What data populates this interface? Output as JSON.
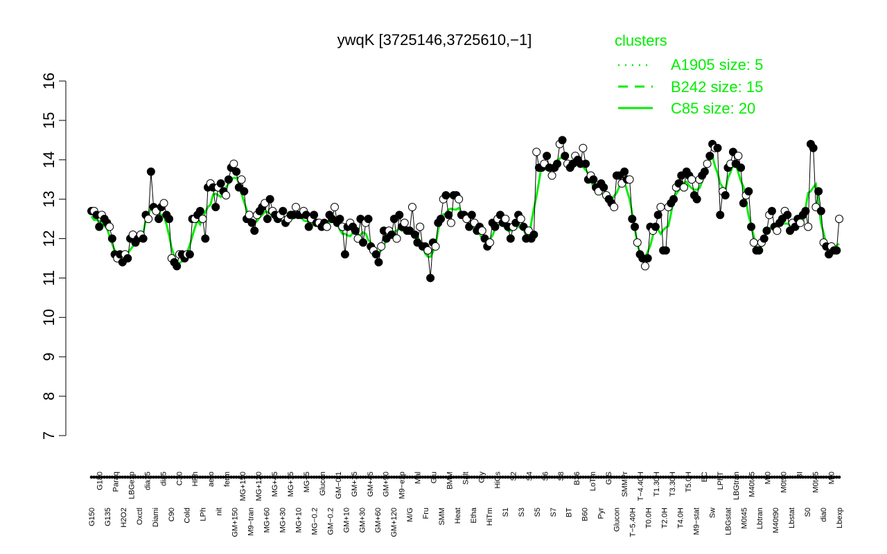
{
  "chart_data": {
    "type": "line",
    "title": "ywqK [3725146,3725610,−1]",
    "xlabel": "",
    "ylabel": "",
    "ylim": [
      7,
      16
    ],
    "yticks": [
      7,
      8,
      9,
      10,
      11,
      12,
      13,
      14,
      15,
      16
    ],
    "tick_labels": [
      "G150",
      "G180",
      "G135",
      "Paraq",
      "H2O2",
      "LBGexp",
      "Oxctl",
      "dia15",
      "Diami",
      "dia5",
      "C90",
      "C30",
      "Cold",
      "HPh",
      "LPh",
      "aero",
      "nit",
      "ferm",
      "GM+150",
      "MG+150",
      "M9−tran",
      "MG+120",
      "MG+60",
      "MG+45",
      "MG+30",
      "MG+15",
      "MG+10",
      "MG+5",
      "MG−0.2",
      "Glucon",
      "GM−0.2",
      "GM−0.1",
      "GM+10",
      "GM+15",
      "GM+30",
      "GM+45",
      "GM+60",
      "GM+90",
      "GM+120",
      "M9−exp",
      "M/G",
      "Mal",
      "Fru",
      "Glu",
      "SMM",
      "BMM",
      "Heat",
      "Salt",
      "Etha",
      "Gly",
      "HiTm",
      "HiOs",
      "S1",
      "S2",
      "S3",
      "S4",
      "S5",
      "S6",
      "S7",
      "S8",
      "BT",
      "B36",
      "B60",
      "LoTm",
      "Pyr",
      "G/S",
      "Glucon",
      "SMMPr",
      "T−5.40H",
      "T−4.40H",
      "T0.0H",
      "T1.30H",
      "T2.0H",
      "T3.30H",
      "T4.0H",
      "T5.0H",
      "M9−stat",
      "BC",
      "Sw",
      "LPhT",
      "LBGstat",
      "LBGtran",
      "M0t45",
      "M40t45",
      "Lbtran",
      "Mt0",
      "M40t90",
      "M0t90",
      "Lbstat",
      "BI",
      "S0",
      "M0t45",
      "dia0",
      "Mt0",
      "Lbexp"
    ],
    "series": [
      {
        "name": "",
        "style": "points",
        "y": [
          12.7,
          12.7,
          12.6,
          12.3,
          12.6,
          12.5,
          12.4,
          12.3,
          12.0,
          11.6,
          11.5,
          11.6,
          11.4,
          11.6,
          11.5,
          12.0,
          12.1,
          11.9,
          12.0,
          12.1,
          12.0,
          12.6,
          12.5,
          13.7,
          12.8,
          12.7,
          12.5,
          12.8,
          12.9,
          12.6,
          12.5,
          11.5,
          11.4,
          11.3,
          11.6,
          11.6,
          11.5,
          11.6,
          11.6,
          12.5,
          12.5,
          12.6,
          12.7,
          12.5,
          12.0,
          13.3,
          13.4,
          13.3,
          12.8,
          13.3,
          13.4,
          13.2,
          13.1,
          13.5,
          13.8,
          13.9,
          13.7,
          13.3,
          13.5,
          13.2,
          12.5,
          12.6,
          12.4,
          12.2,
          12.6,
          12.7,
          12.8,
          12.9,
          12.5,
          13.0,
          12.7,
          12.6,
          12.5,
          12.6,
          12.7,
          12.4,
          12.5,
          12.6,
          12.6,
          12.8,
          12.6,
          12.6,
          12.7,
          12.6,
          12.3,
          12.5,
          12.6,
          12.4,
          12.4,
          12.3,
          12.4,
          12.3,
          12.6,
          12.5,
          12.8,
          12.4,
          12.5,
          12.3,
          11.6,
          12.3,
          12.4,
          12.3,
          12.2,
          12.0,
          12.5,
          11.9,
          12.4,
          12.5,
          11.8,
          11.7,
          11.6,
          11.4,
          11.8,
          12.2,
          12.0,
          12.2,
          12.1,
          12.5,
          12.0,
          12.6,
          12.3,
          12.4,
          12.2,
          12.2,
          12.8,
          12.1,
          11.9,
          12.3,
          11.8,
          11.8,
          11.7,
          11.0,
          11.9,
          11.8,
          12.4,
          12.5,
          13.0,
          13.1,
          12.6,
          12.4,
          13.1,
          13.1,
          13.0,
          12.6,
          12.6,
          12.5,
          12.3,
          12.6,
          12.4,
          12.2,
          12.3,
          12.2,
          12.0,
          11.8,
          11.9,
          12.4,
          12.3,
          12.5,
          12.6,
          12.4,
          12.5,
          12.3,
          12.0,
          12.3,
          12.4,
          12.6,
          12.5,
          12.3,
          12.0,
          12.2,
          12.0,
          12.1,
          14.2,
          13.8,
          13.8,
          13.9,
          14.1,
          13.8,
          13.6,
          13.8,
          13.9,
          14.4,
          14.5,
          14.1,
          13.9,
          13.8,
          13.9,
          14.1,
          14.0,
          13.9,
          14.3,
          13.9,
          13.5,
          13.6,
          13.5,
          13.3,
          13.2,
          13.4,
          13.3,
          13.1,
          13.0,
          12.9,
          12.8,
          13.6,
          13.6,
          13.4,
          13.7,
          13.5,
          13.5,
          12.5,
          12.3,
          11.9,
          11.6,
          11.5,
          11.3,
          11.5,
          12.3,
          12.2,
          12.3,
          12.6,
          12.8,
          11.7,
          11.7,
          12.8,
          12.9,
          13.0,
          13.3,
          13.4,
          13.6,
          13.3,
          13.7,
          13.6,
          13.5,
          13.1,
          13.0,
          13.5,
          13.6,
          13.7,
          13.9,
          14.1,
          14.4,
          14.3,
          14.3,
          12.6,
          13.2,
          13.1,
          13.8,
          13.9,
          14.2,
          13.9,
          14.1,
          13.8,
          12.9,
          13.1,
          13.2,
          12.3,
          11.9,
          11.7,
          11.7,
          11.9,
          12.0,
          12.2,
          12.6,
          12.7,
          12.3,
          12.2,
          12.4,
          12.5,
          12.7,
          12.6,
          12.2,
          12.4,
          12.3,
          12.5,
          12.4,
          12.6,
          12.7,
          12.3,
          14.4,
          14.3,
          12.8,
          13.2,
          12.7,
          11.9,
          11.8,
          11.6,
          11.8,
          11.7,
          11.7,
          12.5
        ]
      }
    ],
    "line_series_name": "C85 size: 20",
    "legend": {
      "title": "clusters",
      "placement": "top-right",
      "entries": [
        {
          "label": "A1905 size: 5",
          "style": "dotted"
        },
        {
          "label": "B242 size: 15",
          "style": "dashed"
        },
        {
          "label": "C85 size: 20",
          "style": "solid"
        }
      ]
    },
    "colors": {
      "line": "#00ee00",
      "points_fill": "#000000",
      "points_open": "#ffffff",
      "axis": "#000000"
    }
  }
}
